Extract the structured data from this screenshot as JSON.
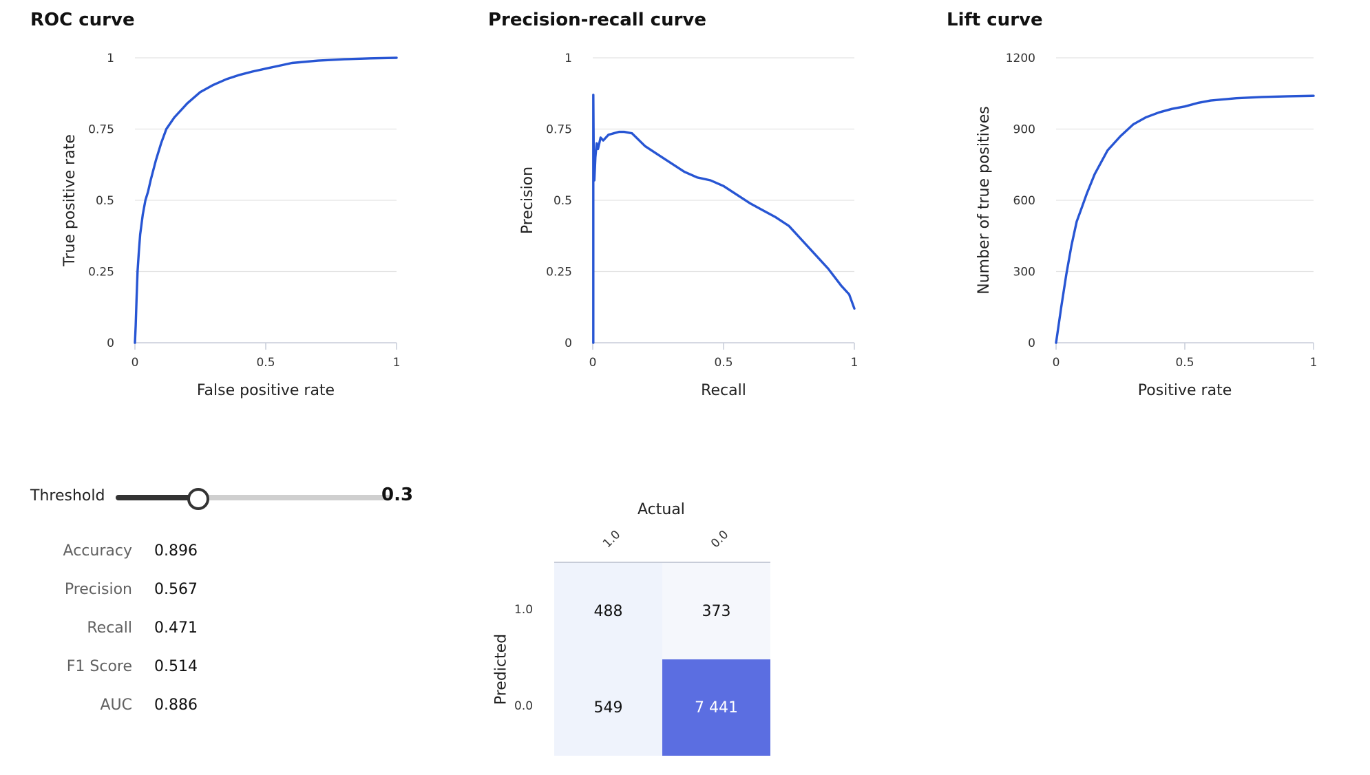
{
  "colors": {
    "curve": "#2755d3",
    "slider_fill": "#333333",
    "matrix_dark": "#5b6ee1",
    "matrix_light": "#eff3fc",
    "matrix_lighter": "#f5f7fc"
  },
  "charts": {
    "roc": {
      "title": "ROC curve",
      "xlabel": "False positive rate",
      "ylabel": "True positive rate"
    },
    "pr": {
      "title": "Precision-recall curve",
      "xlabel": "Recall",
      "ylabel": "Precision"
    },
    "lift": {
      "title": "Lift curve",
      "xlabel": "Positive rate",
      "ylabel": "Number of true positives"
    }
  },
  "chart_data": [
    {
      "type": "line",
      "title": "ROC curve",
      "xlabel": "False positive rate",
      "ylabel": "True positive rate",
      "xlim": [
        0,
        1
      ],
      "ylim": [
        0,
        1
      ],
      "xticks": [
        "0",
        "0.5",
        "1"
      ],
      "yticks": [
        "0",
        "0.25",
        "0.5",
        "0.75",
        "1"
      ],
      "grid": true,
      "x": [
        0,
        0.003,
        0.006,
        0.01,
        0.015,
        0.02,
        0.03,
        0.04,
        0.05,
        0.06,
        0.08,
        0.1,
        0.12,
        0.15,
        0.18,
        0.2,
        0.25,
        0.3,
        0.35,
        0.4,
        0.45,
        0.5,
        0.55,
        0.6,
        0.7,
        0.8,
        0.9,
        1.0
      ],
      "y": [
        0,
        0.06,
        0.15,
        0.25,
        0.32,
        0.38,
        0.45,
        0.5,
        0.53,
        0.57,
        0.64,
        0.7,
        0.75,
        0.79,
        0.82,
        0.84,
        0.88,
        0.905,
        0.925,
        0.94,
        0.952,
        0.962,
        0.972,
        0.982,
        0.99,
        0.995,
        0.998,
        1.0
      ]
    },
    {
      "type": "line",
      "title": "Precision-recall curve",
      "xlabel": "Recall",
      "ylabel": "Precision",
      "xlim": [
        0,
        1
      ],
      "ylim": [
        0,
        1
      ],
      "xticks": [
        "0",
        "0.5",
        "1"
      ],
      "yticks": [
        "0",
        "0.25",
        "0.5",
        "0.75",
        "1"
      ],
      "grid": true,
      "x": [
        0.002,
        0.002,
        0.004,
        0.006,
        0.01,
        0.015,
        0.02,
        0.03,
        0.04,
        0.06,
        0.08,
        0.1,
        0.12,
        0.15,
        0.2,
        0.25,
        0.3,
        0.35,
        0.4,
        0.45,
        0.5,
        0.55,
        0.6,
        0.65,
        0.7,
        0.75,
        0.8,
        0.85,
        0.9,
        0.95,
        0.98,
        1.0
      ],
      "y": [
        0.0,
        0.87,
        0.62,
        0.57,
        0.65,
        0.7,
        0.68,
        0.72,
        0.71,
        0.73,
        0.735,
        0.74,
        0.74,
        0.735,
        0.69,
        0.66,
        0.63,
        0.6,
        0.58,
        0.57,
        0.55,
        0.52,
        0.49,
        0.465,
        0.44,
        0.41,
        0.36,
        0.31,
        0.26,
        0.2,
        0.17,
        0.12
      ]
    },
    {
      "type": "line",
      "title": "Lift curve",
      "xlabel": "Positive rate",
      "ylabel": "Number of true positives",
      "xlim": [
        0,
        1
      ],
      "ylim": [
        0,
        1200
      ],
      "xticks": [
        "0",
        "0.5",
        "1"
      ],
      "yticks": [
        "0",
        "300",
        "600",
        "900",
        "1200"
      ],
      "grid": true,
      "x": [
        0,
        0.02,
        0.04,
        0.06,
        0.08,
        0.1,
        0.12,
        0.15,
        0.18,
        0.2,
        0.25,
        0.3,
        0.35,
        0.4,
        0.45,
        0.5,
        0.55,
        0.6,
        0.7,
        0.8,
        0.9,
        1.0
      ],
      "y": [
        0,
        150,
        290,
        410,
        510,
        570,
        630,
        710,
        770,
        810,
        870,
        920,
        950,
        970,
        985,
        995,
        1010,
        1020,
        1030,
        1035,
        1038,
        1040
      ]
    }
  ],
  "threshold": {
    "label": "Threshold",
    "value": "0.3",
    "fraction": 0.3
  },
  "metrics": [
    {
      "name": "Accuracy",
      "value": "0.896"
    },
    {
      "name": "Precision",
      "value": "0.567"
    },
    {
      "name": "Recall",
      "value": "0.471"
    },
    {
      "name": "F1 Score",
      "value": "0.514"
    },
    {
      "name": "AUC",
      "value": "0.886"
    }
  ],
  "confusion_matrix": {
    "actual_label": "Actual",
    "predicted_label": "Predicted",
    "column_labels": [
      "1.0",
      "0.0"
    ],
    "row_labels": [
      "1.0",
      "0.0"
    ],
    "cells": [
      [
        "488",
        "373"
      ],
      [
        "549",
        "7 441"
      ]
    ]
  }
}
